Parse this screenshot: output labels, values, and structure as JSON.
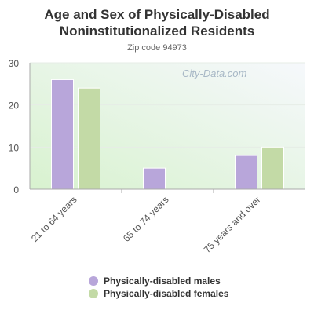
{
  "title": "Age and Sex of Physically-Disabled Noninstitutionalized Residents",
  "subtitle": "Zip code 94973",
  "watermark": "City-Data.com",
  "colors": {
    "males": "#b8a6da",
    "females": "#c3daa6",
    "axis": "#aaaaaa",
    "grid": "#dddddd",
    "text": "#555555"
  },
  "chart_data": {
    "type": "bar",
    "categories": [
      "21 to 64 years",
      "65 to 74 years",
      "75 years and over"
    ],
    "series": [
      {
        "name": "Physically-disabled males",
        "values": [
          26,
          5,
          8
        ]
      },
      {
        "name": "Physically-disabled females",
        "values": [
          24,
          0,
          10
        ]
      }
    ],
    "yticks": [
      0,
      10,
      20,
      30
    ],
    "ylim": [
      0,
      30
    ],
    "grid": true,
    "legend": "bottom"
  }
}
